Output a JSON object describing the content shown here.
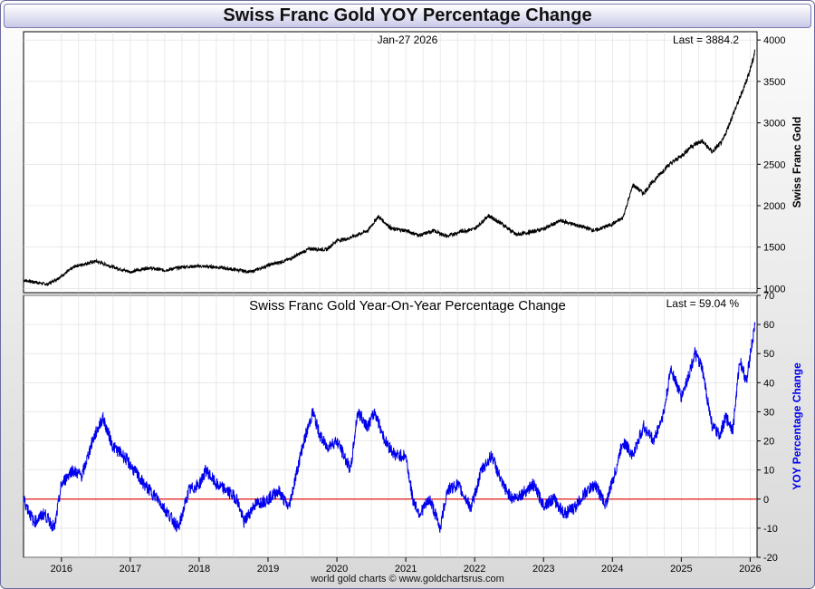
{
  "title": "Swiss Franc Gold YOY Percentage Change",
  "footer": "world gold charts © www.goldchartsrus.com",
  "colors": {
    "price": "#000000",
    "yoy": "#0000ee",
    "zero": "#dd0000",
    "grid": "#dcdcdc"
  },
  "chart_data": [
    {
      "type": "line",
      "title": "",
      "date_label": "Jan-27  2026",
      "last_label": "Last = 3884.2",
      "ylabel": "Swiss Franc Gold",
      "ylim": [
        950,
        4100
      ],
      "yticks": [
        1000,
        1500,
        2000,
        2500,
        3000,
        3500,
        4000
      ],
      "xlim": [
        2015.45,
        2026.1
      ],
      "x_ticks": [
        "2016",
        "2017",
        "2018",
        "2019",
        "2020",
        "2021",
        "2022",
        "2023",
        "2024",
        "2025",
        "2026"
      ],
      "series": [
        {
          "name": "Swiss Franc Gold",
          "x": [
            2015.45,
            2015.6,
            2015.8,
            2016.0,
            2016.2,
            2016.5,
            2016.75,
            2017.0,
            2017.25,
            2017.5,
            2017.75,
            2018.0,
            2018.25,
            2018.5,
            2018.75,
            2019.0,
            2019.3,
            2019.6,
            2019.85,
            2020.0,
            2020.15,
            2020.3,
            2020.45,
            2020.6,
            2020.8,
            2021.0,
            2021.2,
            2021.4,
            2021.6,
            2021.8,
            2022.0,
            2022.2,
            2022.4,
            2022.6,
            2022.8,
            2023.0,
            2023.25,
            2023.5,
            2023.75,
            2024.0,
            2024.15,
            2024.3,
            2024.45,
            2024.6,
            2024.8,
            2025.0,
            2025.15,
            2025.3,
            2025.45,
            2025.6,
            2025.75,
            2025.85,
            2025.95,
            2026.04,
            2026.07
          ],
          "values": [
            1100,
            1080,
            1050,
            1150,
            1270,
            1330,
            1260,
            1200,
            1250,
            1220,
            1260,
            1270,
            1260,
            1230,
            1200,
            1280,
            1350,
            1480,
            1470,
            1580,
            1600,
            1650,
            1700,
            1870,
            1720,
            1700,
            1640,
            1700,
            1630,
            1690,
            1720,
            1880,
            1780,
            1650,
            1680,
            1720,
            1820,
            1760,
            1700,
            1780,
            1850,
            2250,
            2150,
            2300,
            2480,
            2600,
            2720,
            2780,
            2650,
            2780,
            3100,
            3300,
            3520,
            3750,
            3884
          ]
        }
      ]
    },
    {
      "type": "line",
      "title": "Swiss Franc Gold Year-On-Year Percentage Change",
      "last_label": "Last = 59.04 %",
      "ylabel": "YOY Percentage Change",
      "ylim": [
        -20,
        70
      ],
      "yticks": [
        -20,
        -10,
        0,
        10,
        20,
        30,
        40,
        50,
        60,
        70
      ],
      "xlim": [
        2015.45,
        2026.1
      ],
      "series": [
        {
          "name": "YOY Percentage Change",
          "x": [
            2015.45,
            2015.6,
            2015.75,
            2015.9,
            2016.0,
            2016.15,
            2016.3,
            2016.45,
            2016.6,
            2016.75,
            2016.9,
            2017.05,
            2017.2,
            2017.4,
            2017.55,
            2017.7,
            2017.85,
            2018.0,
            2018.1,
            2018.25,
            2018.4,
            2018.55,
            2018.65,
            2018.8,
            2019.0,
            2019.15,
            2019.3,
            2019.5,
            2019.65,
            2019.75,
            2019.85,
            2020.0,
            2020.2,
            2020.3,
            2020.45,
            2020.55,
            2020.7,
            2020.85,
            2021.0,
            2021.1,
            2021.2,
            2021.35,
            2021.5,
            2021.6,
            2021.75,
            2021.95,
            2022.1,
            2022.25,
            2022.4,
            2022.55,
            2022.7,
            2022.85,
            2023.0,
            2023.15,
            2023.3,
            2023.45,
            2023.6,
            2023.75,
            2023.9,
            2024.05,
            2024.15,
            2024.3,
            2024.45,
            2024.6,
            2024.75,
            2024.85,
            2025.0,
            2025.1,
            2025.2,
            2025.3,
            2025.45,
            2025.55,
            2025.65,
            2025.75,
            2025.85,
            2025.95,
            2026.0,
            2026.04,
            2026.07
          ],
          "values": [
            0,
            -8,
            -5,
            -10,
            5,
            10,
            8,
            20,
            28,
            18,
            15,
            10,
            5,
            0,
            -5,
            -10,
            3,
            5,
            10,
            5,
            3,
            0,
            -8,
            -2,
            0,
            3,
            -3,
            18,
            30,
            22,
            18,
            20,
            10,
            30,
            25,
            30,
            20,
            15,
            15,
            0,
            -5,
            0,
            -10,
            3,
            5,
            -3,
            10,
            15,
            5,
            0,
            2,
            5,
            -2,
            0,
            -5,
            -3,
            2,
            5,
            -2,
            10,
            20,
            15,
            25,
            20,
            30,
            45,
            35,
            42,
            50,
            45,
            25,
            22,
            28,
            24,
            48,
            40,
            50,
            55,
            60
          ]
        }
      ]
    }
  ]
}
